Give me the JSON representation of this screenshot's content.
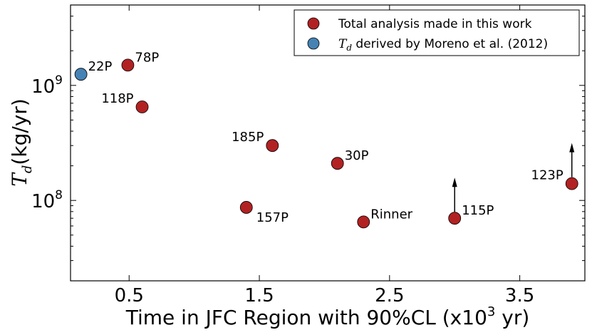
{
  "chart_data": {
    "type": "scatter",
    "xlabel_prefix": "Time in JFC Region with 90%CL (x10",
    "xlabel_exp": "3",
    "xlabel_suffix": " yr)",
    "ylabel_var": "T",
    "ylabel_sub": "d",
    "ylabel_unit": "(kg/yr)",
    "xlim": [
      0.05,
      4.0
    ],
    "ylim": [
      20000000.0,
      5000000000.0
    ],
    "yscale": "log",
    "x_ticks": [
      {
        "value": 0.5,
        "label": "0.5"
      },
      {
        "value": 1.5,
        "label": "1.5"
      },
      {
        "value": 2.5,
        "label": "2.5"
      },
      {
        "value": 3.5,
        "label": "3.5"
      }
    ],
    "y_ticks": [
      {
        "value": 100000000.0,
        "base": "10",
        "exp": "8"
      },
      {
        "value": 1000000000.0,
        "base": "10",
        "exp": "9"
      }
    ],
    "legend": {
      "position": "top-right",
      "entries": [
        {
          "series": "total",
          "label": "Total analysis made in this work",
          "color": "#b22222"
        },
        {
          "series": "moreno",
          "label_var": "T",
          "label_sub": "d",
          "label_rest": " derived by Moreno et al. (2012)",
          "color": "#4682b4"
        }
      ]
    },
    "points": [
      {
        "label": "22P",
        "x": 0.13,
        "y": 1250000000.0,
        "series": "moreno",
        "label_pos": "right"
      },
      {
        "label": "78P",
        "x": 0.49,
        "y": 1500000000.0,
        "series": "total",
        "label_pos": "right"
      },
      {
        "label": "118P",
        "x": 0.6,
        "y": 650000000.0,
        "series": "total",
        "label_pos": "left"
      },
      {
        "label": "185P",
        "x": 1.6,
        "y": 300000000.0,
        "series": "total",
        "label_pos": "left"
      },
      {
        "label": "30P",
        "x": 2.1,
        "y": 210000000.0,
        "series": "total",
        "label_pos": "right"
      },
      {
        "label": "157P",
        "x": 1.4,
        "y": 87000000.0,
        "series": "total",
        "label_pos": "below-right"
      },
      {
        "label": "Rinner",
        "x": 2.3,
        "y": 65000000.0,
        "series": "total",
        "label_pos": "right"
      },
      {
        "label": "115P",
        "x": 3.0,
        "y": 70000000.0,
        "series": "total",
        "label_pos": "right",
        "lower_limit": true
      },
      {
        "label": "123P",
        "x": 3.9,
        "y": 140000000.0,
        "series": "total",
        "label_pos": "left",
        "lower_limit": true
      }
    ]
  }
}
